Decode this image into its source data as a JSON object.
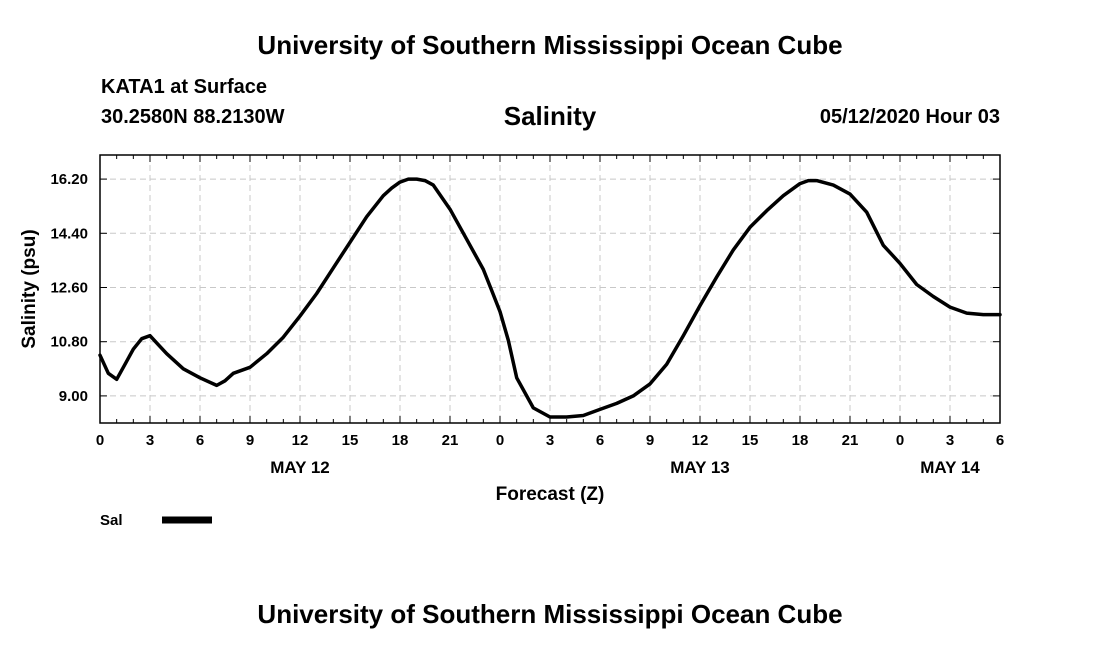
{
  "header": {
    "title": "University of Southern Mississippi Ocean Cube",
    "station": "KATA1 at Surface",
    "coordinates": "30.2580N 88.2130W",
    "variable": "Salinity",
    "datetime": "05/12/2020 Hour 03"
  },
  "footer": {
    "title": "University of Southern Mississippi Ocean Cube"
  },
  "chart_data": {
    "type": "line",
    "title": "Salinity",
    "xlabel": "Forecast (Z)",
    "ylabel": "Salinity (psu)",
    "xlim": [
      0,
      54
    ],
    "ylim": [
      8.1,
      17.0
    ],
    "y_ticks": [
      "9.00",
      "10.80",
      "12.60",
      "14.40",
      "16.20"
    ],
    "y_tick_values": [
      9.0,
      10.8,
      12.6,
      14.4,
      16.2
    ],
    "x_ticks": [
      "0",
      "3",
      "6",
      "9",
      "12",
      "15",
      "18",
      "21",
      "0",
      "3",
      "6",
      "9",
      "12",
      "15",
      "18",
      "21",
      "0",
      "3",
      "6"
    ],
    "x_tick_values": [
      0,
      3,
      6,
      9,
      12,
      15,
      18,
      21,
      24,
      27,
      30,
      33,
      36,
      39,
      42,
      45,
      48,
      51,
      54
    ],
    "day_labels": [
      {
        "label": "MAY 12",
        "x": 12
      },
      {
        "label": "MAY 13",
        "x": 36
      },
      {
        "label": "MAY 14",
        "x": 51
      }
    ],
    "grid": true,
    "legend": "bottom-left",
    "series": [
      {
        "name": "Sal",
        "color": "#000000",
        "x": [
          0,
          0.5,
          1,
          1.5,
          2,
          2.5,
          3,
          3.5,
          4,
          5,
          6,
          7,
          7.5,
          8,
          9,
          10,
          11,
          12,
          13,
          14,
          15,
          16,
          17,
          17.5,
          18,
          18.5,
          19,
          19.5,
          20,
          21,
          22,
          23,
          23.5,
          24,
          24.5,
          25,
          26,
          27,
          28,
          29,
          30,
          31,
          32,
          33,
          34,
          35,
          36,
          37,
          38,
          39,
          40,
          41,
          42,
          42.5,
          43,
          44,
          45,
          46,
          47,
          48,
          49,
          50,
          51,
          52,
          53,
          54
        ],
        "values": [
          10.35,
          9.75,
          9.55,
          10.05,
          10.55,
          10.9,
          11.0,
          10.7,
          10.4,
          9.9,
          9.6,
          9.35,
          9.5,
          9.75,
          9.95,
          10.4,
          10.95,
          11.65,
          12.4,
          13.25,
          14.1,
          14.95,
          15.65,
          15.9,
          16.1,
          16.2,
          16.2,
          16.15,
          16.0,
          15.2,
          14.2,
          13.2,
          12.5,
          11.8,
          10.85,
          9.6,
          8.6,
          8.3,
          8.3,
          8.35,
          8.55,
          8.75,
          9.0,
          9.4,
          10.05,
          11.0,
          12.0,
          12.95,
          13.85,
          14.6,
          15.15,
          15.65,
          16.05,
          16.15,
          16.15,
          16.0,
          15.7,
          15.1,
          14.0,
          13.4,
          12.7,
          12.3,
          11.95,
          11.75,
          11.7,
          11.7
        ]
      }
    ]
  }
}
